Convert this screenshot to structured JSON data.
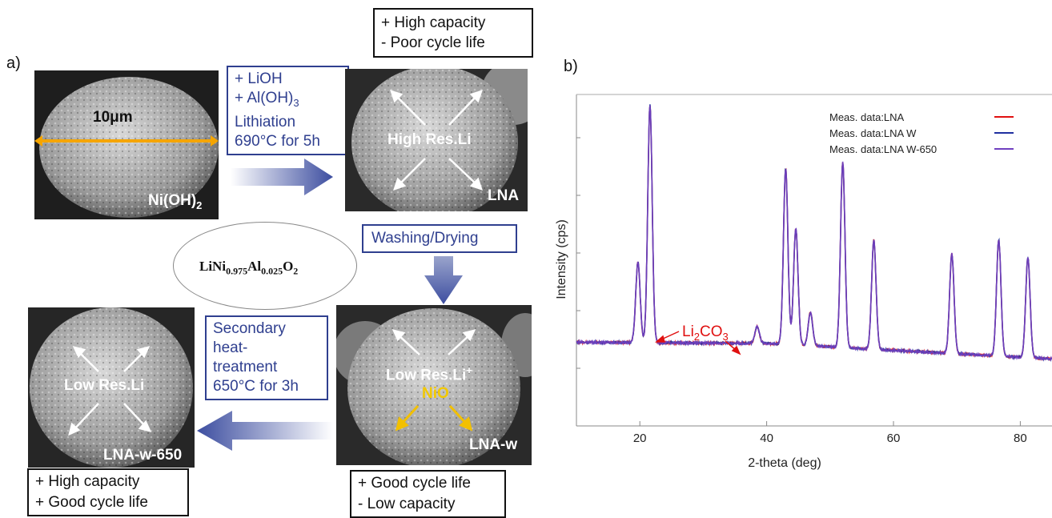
{
  "panel_a": {
    "label": "a)",
    "top_result": [
      "+ High capacity",
      "- Poor cycle life"
    ],
    "process1": [
      "+ LiOH",
      "+ Al(OH)",
      "Lithiation",
      "690°C for 5h"
    ],
    "process1_al_sub": "3",
    "process2": "Washing/Drying",
    "process3": [
      "Secondary",
      "heat-",
      "treatment",
      "650°C for 3h"
    ],
    "formula": {
      "li": "LiNi",
      "ni_sub": "0.975",
      "al": "Al",
      "al_sub": "0.025",
      "o": "O",
      "o_sub": "2"
    },
    "sem1": {
      "scale": "10μm",
      "name": "Ni(OH)",
      "name_sub": "2"
    },
    "sem2": {
      "center": "High Res.Li",
      "name": "LNA"
    },
    "sem3": {
      "center": "Low Res.Li",
      "center_sup": "+",
      "oxide": "NiO",
      "name": "LNA-w"
    },
    "sem4": {
      "center": "Low Res.Li",
      "name": "LNA-w-650"
    },
    "bottom_left_result": [
      "+ High capacity",
      "+ Good cycle life"
    ],
    "bottom_right_result": [
      "+ Good cycle life",
      "- Low capacity"
    ]
  },
  "panel_b": {
    "label": "b)"
  },
  "colors": {
    "blue_text": "#2f3f8f",
    "arrow": "#3d4ea0",
    "yellow": "#f2b000",
    "red": "#e01010",
    "purple": "#6a3fc0"
  },
  "chart_data": {
    "type": "line",
    "xlabel": "2-theta (deg)",
    "ylabel": "Intensity (cps)",
    "xlim": [
      10,
      85
    ],
    "xticks": [
      20,
      40,
      60,
      80
    ],
    "series": [
      {
        "name": "Meas. data:LNA",
        "color": "#e01010"
      },
      {
        "name": "Meas. data:LNA W",
        "color": "#2030a0"
      },
      {
        "name": "Meas. data:LNA W-650",
        "color": "#7040c0"
      }
    ],
    "peaks": [
      {
        "x": 19.7,
        "rel_height": 0.34
      },
      {
        "x": 21.6,
        "rel_height": 1.0
      },
      {
        "x": 38.5,
        "rel_height": 0.07
      },
      {
        "x": 43.0,
        "rel_height": 0.74
      },
      {
        "x": 44.6,
        "rel_height": 0.49
      },
      {
        "x": 46.9,
        "rel_height": 0.14
      },
      {
        "x": 52.0,
        "rel_height": 0.78
      },
      {
        "x": 56.9,
        "rel_height": 0.46
      },
      {
        "x": 69.2,
        "rel_height": 0.42
      },
      {
        "x": 76.6,
        "rel_height": 0.49
      },
      {
        "x": 81.2,
        "rel_height": 0.42
      }
    ],
    "annotation": {
      "text": "Li",
      "sub": "2",
      "text2": "CO",
      "sub2": "3"
    }
  }
}
